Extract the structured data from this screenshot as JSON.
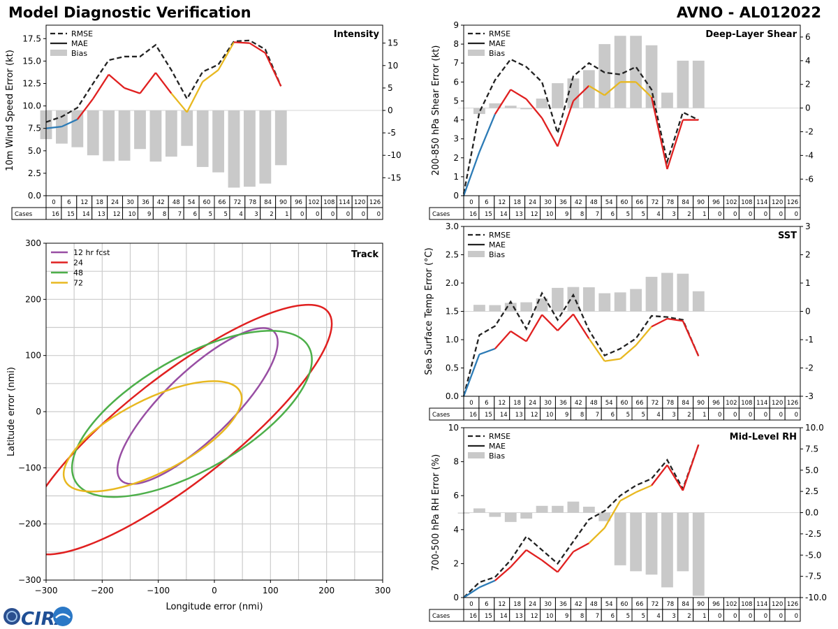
{
  "header": {
    "title": "Model Diagnostic Verification",
    "storm": "AVNO - AL012022"
  },
  "logo": {
    "text": "CIRA"
  },
  "colors": {
    "early": "#2c7bb6",
    "mid": "#e02020",
    "late": "#e8b820",
    "rmse": "#222222",
    "bias": "#c9c9c9",
    "track12": "#984ea3",
    "track24": "#e02020",
    "track48": "#4daf4a",
    "track72": "#e8b820"
  },
  "case_table": {
    "label": "Cases",
    "hours": [
      "0",
      "6",
      "12",
      "18",
      "24",
      "30",
      "36",
      "42",
      "48",
      "54",
      "60",
      "66",
      "72",
      "78",
      "84",
      "90",
      "96",
      "102",
      "108",
      "114",
      "120",
      "126"
    ],
    "counts": [
      "16",
      "15",
      "14",
      "13",
      "12",
      "10",
      "9",
      "8",
      "7",
      "6",
      "5",
      "5",
      "4",
      "3",
      "2",
      "1",
      "0",
      "0",
      "0",
      "0",
      "0",
      "0"
    ]
  },
  "chart_data": [
    {
      "id": "intensity",
      "type": "line",
      "title": "Intensity",
      "ylabel": "10m Wind Speed Error (kt)",
      "ylim": [
        0,
        19
      ],
      "yticks": [
        "0.0",
        "2.5",
        "5.0",
        "7.5",
        "10.0",
        "12.5",
        "15.0",
        "17.5"
      ],
      "y2lim": [
        -19,
        19
      ],
      "y2ticks": [
        "-15",
        "-10",
        "-5",
        "0",
        "5",
        "10",
        "15"
      ],
      "legend": [
        "RMSE",
        "MAE",
        "Bias"
      ],
      "x": [
        0,
        6,
        12,
        18,
        24,
        30,
        36,
        42,
        48,
        54,
        60,
        66,
        72,
        78,
        84,
        90
      ],
      "series": [
        {
          "name": "RMSE",
          "values": [
            8.2,
            8.8,
            9.8,
            12.5,
            15.1,
            15.5,
            15.5,
            16.8,
            14.0,
            10.8,
            13.8,
            14.6,
            17.2,
            17.3,
            16.3,
            12.2
          ]
        },
        {
          "name": "MAE",
          "values": [
            7.5,
            7.7,
            8.5,
            10.8,
            13.5,
            12.0,
            11.4,
            13.7,
            11.4,
            9.3,
            12.7,
            14.0,
            17.1,
            17.0,
            15.9,
            12.2
          ]
        },
        {
          "name": "Bias",
          "values": [
            -6.4,
            -7.4,
            -8.2,
            -10.0,
            -11.3,
            -11.2,
            -8.6,
            -11.4,
            -10.3,
            -7.9,
            -12.6,
            -13.8,
            -17.2,
            -17.0,
            -16.3,
            -12.2
          ]
        }
      ]
    },
    {
      "id": "shear",
      "type": "line",
      "title": "Deep-Layer Shear",
      "ylabel": "200-850 hPa Shear Error (kt)",
      "ylim": [
        0,
        9
      ],
      "yticks": [
        "0",
        "1",
        "2",
        "3",
        "4",
        "5",
        "6",
        "7",
        "8",
        "9"
      ],
      "y2lim": [
        -7.4,
        7.0
      ],
      "y2ticks": [
        "-6",
        "-4",
        "-2",
        "0",
        "2",
        "4",
        "6"
      ],
      "legend": [
        "RMSE",
        "MAE",
        "Bias"
      ],
      "x": [
        0,
        6,
        12,
        18,
        24,
        30,
        36,
        42,
        48,
        54,
        60,
        66,
        72,
        78,
        84,
        90
      ],
      "series": [
        {
          "name": "RMSE",
          "values": [
            0.1,
            4.4,
            6.1,
            7.2,
            6.8,
            6.0,
            3.3,
            6.3,
            7.0,
            6.5,
            6.4,
            6.8,
            5.6,
            1.8,
            4.4,
            4.0
          ]
        },
        {
          "name": "MAE",
          "values": [
            0.0,
            2.3,
            4.3,
            5.6,
            5.1,
            4.1,
            2.6,
            5.0,
            5.8,
            5.3,
            6.0,
            6.0,
            5.2,
            1.4,
            4.0,
            4.0
          ]
        },
        {
          "name": "Bias",
          "values": [
            0.0,
            -0.5,
            0.4,
            0.2,
            -0.1,
            0.8,
            2.1,
            2.5,
            3.2,
            5.4,
            6.1,
            6.1,
            5.3,
            1.3,
            4.0,
            4.0
          ]
        }
      ]
    },
    {
      "id": "sst",
      "type": "line",
      "title": "SST",
      "ylabel": "Sea Surface Temp Error (°C)",
      "ylim": [
        0,
        3.0
      ],
      "yticks": [
        "0.0",
        "0.5",
        "1.0",
        "1.5",
        "2.0",
        "2.5",
        "3.0"
      ],
      "y2lim": [
        -3,
        3
      ],
      "y2ticks": [
        "-3",
        "-2",
        "-1",
        "0",
        "1",
        "2",
        "3"
      ],
      "legend": [
        "RMSE",
        "MAE",
        "Bias"
      ],
      "x": [
        0,
        6,
        12,
        18,
        24,
        30,
        36,
        42,
        48,
        54,
        60,
        66,
        72,
        78,
        84,
        90
      ],
      "series": [
        {
          "name": "RMSE",
          "values": [
            0.0,
            1.08,
            1.24,
            1.67,
            1.19,
            1.82,
            1.35,
            1.79,
            1.17,
            0.72,
            0.84,
            1.02,
            1.42,
            1.4,
            1.35,
            0.71
          ]
        },
        {
          "name": "MAE",
          "values": [
            0.0,
            0.74,
            0.84,
            1.15,
            0.97,
            1.44,
            1.16,
            1.45,
            1.02,
            0.62,
            0.66,
            0.9,
            1.23,
            1.37,
            1.33,
            0.71
          ]
        },
        {
          "name": "Bias",
          "values": [
            0.0,
            0.23,
            0.22,
            0.3,
            0.32,
            0.46,
            0.83,
            0.86,
            0.85,
            0.64,
            0.67,
            0.79,
            1.22,
            1.36,
            1.33,
            0.71
          ]
        }
      ]
    },
    {
      "id": "rh",
      "type": "line",
      "title": "Mid-Level RH",
      "ylabel": "700-500 hPa RH Error (%)",
      "ylim": [
        0,
        10
      ],
      "yticks": [
        "0",
        "2",
        "4",
        "6",
        "8",
        "10"
      ],
      "y2lim": [
        -10,
        10
      ],
      "y2ticks": [
        "-10.0",
        "-7.5",
        "-5.0",
        "-2.5",
        "0.0",
        "2.5",
        "5.0",
        "7.5",
        "10.0"
      ],
      "legend": [
        "RMSE",
        "MAE",
        "Bias"
      ],
      "x": [
        0,
        6,
        12,
        18,
        24,
        30,
        36,
        42,
        48,
        54,
        60,
        66,
        72,
        78,
        84,
        90
      ],
      "series": [
        {
          "name": "RMSE",
          "values": [
            0.0,
            0.9,
            1.2,
            2.2,
            3.6,
            2.8,
            2.0,
            3.3,
            4.6,
            5.1,
            6.0,
            6.6,
            7.0,
            8.1,
            6.4,
            9.0
          ]
        },
        {
          "name": "MAE",
          "values": [
            0.0,
            0.6,
            1.0,
            1.8,
            2.8,
            2.2,
            1.5,
            2.7,
            3.2,
            4.1,
            5.7,
            6.2,
            6.6,
            7.8,
            6.3,
            9.0
          ]
        },
        {
          "name": "Bias",
          "values": [
            -0.1,
            0.5,
            -0.5,
            -1.1,
            -0.7,
            0.8,
            0.8,
            1.3,
            0.7,
            -1.0,
            -6.2,
            -6.9,
            -7.3,
            -8.8,
            -6.9,
            -9.8
          ]
        }
      ]
    },
    {
      "id": "track",
      "type": "line",
      "title": "Track",
      "xlabel": "Longitude error (nmi)",
      "ylabel": "Latitude error (nmi)",
      "xlim": [
        -300,
        300
      ],
      "ylim": [
        -300,
        300
      ],
      "xticks": [
        "−300",
        "−200",
        "−100",
        "0",
        "100",
        "200",
        "300"
      ],
      "yticks": [
        "−300",
        "−200",
        "−100",
        "0",
        "100",
        "200",
        "300"
      ],
      "legend": [
        "12 hr fcst",
        "24",
        "48",
        "72"
      ],
      "ellipses": [
        {
          "name": "12 hr fcst",
          "cx": -30,
          "cy": 10,
          "a": 190,
          "b": 60,
          "angle_deg": 44
        },
        {
          "name": "24",
          "cx": -65,
          "cy": -32,
          "a": 340,
          "b": 95,
          "angle_deg": 38
        },
        {
          "name": "48",
          "cx": -40,
          "cy": -4,
          "a": 240,
          "b": 100,
          "angle_deg": 30
        },
        {
          "name": "72",
          "cx": -110,
          "cy": -44,
          "a": 175,
          "b": 65,
          "angle_deg": 27
        }
      ]
    }
  ]
}
